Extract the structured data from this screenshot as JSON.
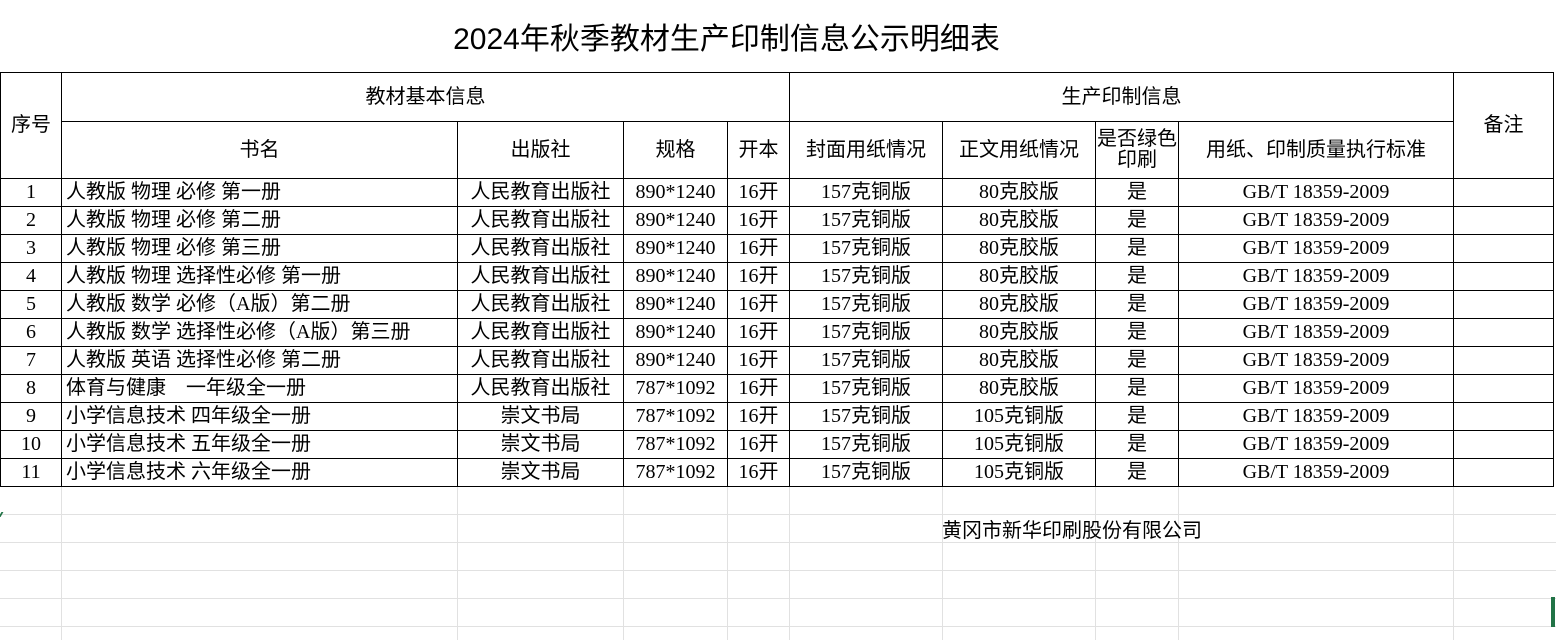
{
  "title": "2024年秋季教材生产印制信息公示明细表",
  "headers": {
    "seq": "序号",
    "group_basic": "教材基本信息",
    "group_production": "生产印制信息",
    "remark": "备注",
    "book_name": "书名",
    "publisher": "出版社",
    "spec": "规格",
    "format": "开本",
    "cover_paper": "封面用纸情况",
    "body_paper": "正文用纸情况",
    "green_print": "是否绿色印刷",
    "standard": "用纸、印制质量执行标准"
  },
  "rows": [
    [
      "1",
      "人教版 物理 必修 第一册",
      "人民教育出版社",
      "890*1240",
      "16开",
      "157克铜版",
      "80克胶版",
      "是",
      "GB/T 18359-2009",
      ""
    ],
    [
      "2",
      "人教版 物理 必修 第二册",
      "人民教育出版社",
      "890*1240",
      "16开",
      "157克铜版",
      "80克胶版",
      "是",
      "GB/T 18359-2009",
      ""
    ],
    [
      "3",
      "人教版 物理 必修 第三册",
      "人民教育出版社",
      "890*1240",
      "16开",
      "157克铜版",
      "80克胶版",
      "是",
      "GB/T 18359-2009",
      ""
    ],
    [
      "4",
      "人教版 物理 选择性必修 第一册",
      "人民教育出版社",
      "890*1240",
      "16开",
      "157克铜版",
      "80克胶版",
      "是",
      "GB/T 18359-2009",
      ""
    ],
    [
      "5",
      "人教版 数学 必修（A版）第二册",
      "人民教育出版社",
      "890*1240",
      "16开",
      "157克铜版",
      "80克胶版",
      "是",
      "GB/T 18359-2009",
      ""
    ],
    [
      "6",
      "人教版 数学 选择性必修（A版）第三册",
      "人民教育出版社",
      "890*1240",
      "16开",
      "157克铜版",
      "80克胶版",
      "是",
      "GB/T 18359-2009",
      ""
    ],
    [
      "7",
      "人教版 英语 选择性必修 第二册",
      "人民教育出版社",
      "890*1240",
      "16开",
      "157克铜版",
      "80克胶版",
      "是",
      "GB/T 18359-2009",
      ""
    ],
    [
      "8",
      "体育与健康　一年级全一册",
      "人民教育出版社",
      "787*1092",
      "16开",
      "157克铜版",
      "80克胶版",
      "是",
      "GB/T 18359-2009",
      ""
    ],
    [
      "9",
      "小学信息技术 四年级全一册",
      "崇文书局",
      "787*1092",
      "16开",
      "157克铜版",
      "105克铜版",
      "是",
      "GB/T 18359-2009",
      ""
    ],
    [
      "10",
      "小学信息技术 五年级全一册",
      "崇文书局",
      "787*1092",
      "16开",
      "157克铜版",
      "105克铜版",
      "是",
      "GB/T 18359-2009",
      ""
    ],
    [
      "11",
      "小学信息技术 六年级全一册",
      "崇文书局",
      "787*1092",
      "16开",
      "157克铜版",
      "105克铜版",
      "是",
      "GB/T 18359-2009",
      ""
    ]
  ],
  "company": "黄冈市新华印刷股份有限公司",
  "colors": {
    "border": "#000000",
    "gridline": "#e1e1e1",
    "selection": "#217346"
  }
}
